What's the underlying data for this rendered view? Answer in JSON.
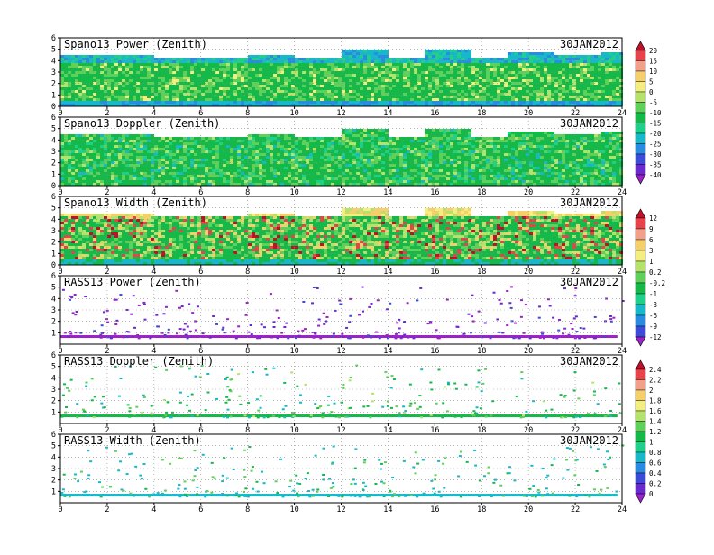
{
  "chart_data": [
    {
      "type": "heatmap",
      "title": "Spano13 Power (Zenith)",
      "date": "30JAN2012",
      "x_ticks": [
        "0",
        "2",
        "4",
        "6",
        "8",
        "10",
        "12",
        "14",
        "16",
        "18",
        "20",
        "22",
        "24"
      ],
      "y_ticks": [
        "0",
        "1",
        "2",
        "3",
        "4",
        "5",
        "6"
      ],
      "xlim": [
        0,
        24
      ],
      "ylim": [
        0,
        6
      ],
      "grid": true,
      "colorbar": "power"
    },
    {
      "type": "heatmap",
      "title": "Spano13 Doppler (Zenith)",
      "date": "30JAN2012",
      "x_ticks": [
        "0",
        "2",
        "4",
        "6",
        "8",
        "10",
        "12",
        "14",
        "16",
        "18",
        "20",
        "22",
        "24"
      ],
      "y_ticks": [
        "0",
        "1",
        "2",
        "3",
        "4",
        "5",
        "6"
      ],
      "xlim": [
        0,
        24
      ],
      "ylim": [
        0,
        6
      ],
      "grid": true,
      "colorbar": "power"
    },
    {
      "type": "heatmap",
      "title": "Spano13 Width (Zenith)",
      "date": "30JAN2012",
      "x_ticks": [
        "0",
        "2",
        "4",
        "6",
        "8",
        "10",
        "12",
        "14",
        "16",
        "18",
        "20",
        "22",
        "24"
      ],
      "y_ticks": [
        "0",
        "1",
        "2",
        "3",
        "4",
        "5",
        "6"
      ],
      "xlim": [
        0,
        24
      ],
      "ylim": [
        0,
        6
      ],
      "grid": true,
      "colorbar": "doppler"
    },
    {
      "type": "heatmap",
      "title": "RASS13 Power (Zenith)",
      "date": "30JAN2012",
      "x_ticks": [
        "0",
        "2",
        "4",
        "6",
        "8",
        "10",
        "12",
        "14",
        "16",
        "18",
        "20",
        "22",
        "24"
      ],
      "y_ticks": [
        "1",
        "2",
        "3",
        "4",
        "5",
        "6"
      ],
      "xlim": [
        0,
        24
      ],
      "ylim": [
        0,
        6
      ],
      "grid": true,
      "colorbar": "doppler"
    },
    {
      "type": "heatmap",
      "title": "RASS13 Doppler (Zenith)",
      "date": "30JAN2012",
      "x_ticks": [
        "0",
        "2",
        "4",
        "6",
        "8",
        "10",
        "12",
        "14",
        "16",
        "18",
        "20",
        "22",
        "24"
      ],
      "y_ticks": [
        "1",
        "2",
        "3",
        "4",
        "5",
        "6"
      ],
      "xlim": [
        0,
        24
      ],
      "ylim": [
        0,
        6
      ],
      "grid": true,
      "colorbar": "width"
    },
    {
      "type": "heatmap",
      "title": "RASS13 Width (Zenith)",
      "date": "30JAN2012",
      "x_ticks": [
        "0",
        "2",
        "4",
        "6",
        "8",
        "10",
        "12",
        "14",
        "16",
        "18",
        "20",
        "22",
        "24"
      ],
      "y_ticks": [
        "1",
        "2",
        "3",
        "4",
        "5",
        "6"
      ],
      "xlim": [
        0,
        24
      ],
      "ylim": [
        0,
        6
      ],
      "grid": true,
      "colorbar": "width"
    }
  ],
  "colorbars": {
    "power": {
      "labels": [
        "20",
        "15",
        "10",
        "5",
        "0",
        "-5",
        "-10",
        "-15",
        "-20",
        "-25",
        "-30",
        "-35",
        "-40"
      ],
      "colors": [
        "#c0102a",
        "#e8434a",
        "#f2a08a",
        "#f5cf6a",
        "#f3ee7d",
        "#b5e26a",
        "#5fd05a",
        "#14b94a",
        "#1fd08a",
        "#18b8c8",
        "#2a8ce0",
        "#3c4cd8",
        "#6a2ad0",
        "#9a22c8"
      ]
    },
    "doppler": {
      "labels": [
        "12",
        "9",
        "6",
        "3",
        "1",
        "0.2",
        "-0.2",
        "-1",
        "-3",
        "-6",
        "-9",
        "-12"
      ],
      "colors": [
        "#c0102a",
        "#e8434a",
        "#f2a08a",
        "#f5cf6a",
        "#f3ee7d",
        "#b5e26a",
        "#5fd05a",
        "#14b94a",
        "#1fd08a",
        "#18b8c8",
        "#2a8ce0",
        "#3c4cd8",
        "#9a22c8"
      ]
    },
    "width": {
      "labels": [
        "2.4",
        "2.2",
        "2",
        "1.8",
        "1.6",
        "1.4",
        "1.2",
        "1",
        "0.8",
        "0.6",
        "0.4",
        "0.2",
        "0"
      ],
      "colors": [
        "#c0102a",
        "#e8434a",
        "#f2a08a",
        "#f5cf6a",
        "#f3ee7d",
        "#b5e26a",
        "#5fd05a",
        "#14b94a",
        "#1fd08a",
        "#18b8c8",
        "#2a8ce0",
        "#3c4cd8",
        "#6a2ad0",
        "#9a22c8"
      ]
    }
  }
}
